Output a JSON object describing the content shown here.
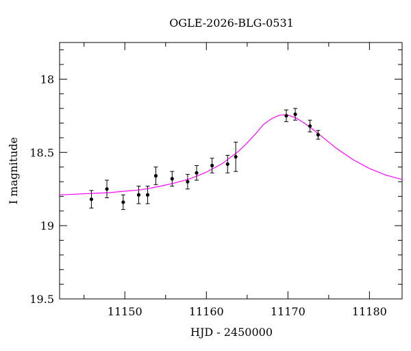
{
  "chart_data": {
    "type": "scatter",
    "title": "OGLE-2026-BLG-0531",
    "xlabel": "HJD - 2450000",
    "ylabel": "I magnitude",
    "xlim": [
      11142,
      11184
    ],
    "ylim": [
      19.5,
      17.75
    ],
    "y_inverted": true,
    "xticks": [
      11150,
      11160,
      11170,
      11180
    ],
    "yticks": [
      18,
      18.5,
      19,
      19.5
    ],
    "grid": false,
    "colors": {
      "points": "#000000",
      "model": "#ff00ff"
    },
    "points": [
      {
        "x": 11145.9,
        "y": 18.82,
        "err": 0.06
      },
      {
        "x": 11147.8,
        "y": 18.75,
        "err": 0.06
      },
      {
        "x": 11149.8,
        "y": 18.84,
        "err": 0.05
      },
      {
        "x": 11151.7,
        "y": 18.79,
        "err": 0.06
      },
      {
        "x": 11152.8,
        "y": 18.79,
        "err": 0.06
      },
      {
        "x": 11153.8,
        "y": 18.66,
        "err": 0.06
      },
      {
        "x": 11155.8,
        "y": 18.68,
        "err": 0.05
      },
      {
        "x": 11157.7,
        "y": 18.7,
        "err": 0.05
      },
      {
        "x": 11158.8,
        "y": 18.64,
        "err": 0.05
      },
      {
        "x": 11160.7,
        "y": 18.59,
        "err": 0.05
      },
      {
        "x": 11162.6,
        "y": 18.58,
        "err": 0.06
      },
      {
        "x": 11163.6,
        "y": 18.53,
        "err": 0.1
      },
      {
        "x": 11169.8,
        "y": 18.25,
        "err": 0.04
      },
      {
        "x": 11170.9,
        "y": 18.24,
        "err": 0.04
      },
      {
        "x": 11172.7,
        "y": 18.32,
        "err": 0.04
      },
      {
        "x": 11173.7,
        "y": 18.38,
        "err": 0.03
      }
    ],
    "model": {
      "name": "",
      "x": [
        11142,
        11144,
        11146,
        11148,
        11150,
        11152,
        11154,
        11156,
        11158,
        11160,
        11162,
        11164,
        11165,
        11166,
        11167,
        11168,
        11169,
        11170,
        11171,
        11172,
        11173,
        11174,
        11175,
        11176,
        11178,
        11180,
        11182,
        11184
      ],
      "y": [
        18.79,
        18.785,
        18.78,
        18.775,
        18.765,
        18.755,
        18.735,
        18.71,
        18.68,
        18.635,
        18.575,
        18.49,
        18.435,
        18.375,
        18.31,
        18.27,
        18.245,
        18.245,
        18.265,
        18.3,
        18.34,
        18.385,
        18.43,
        18.475,
        18.55,
        18.61,
        18.655,
        18.685
      ]
    }
  }
}
